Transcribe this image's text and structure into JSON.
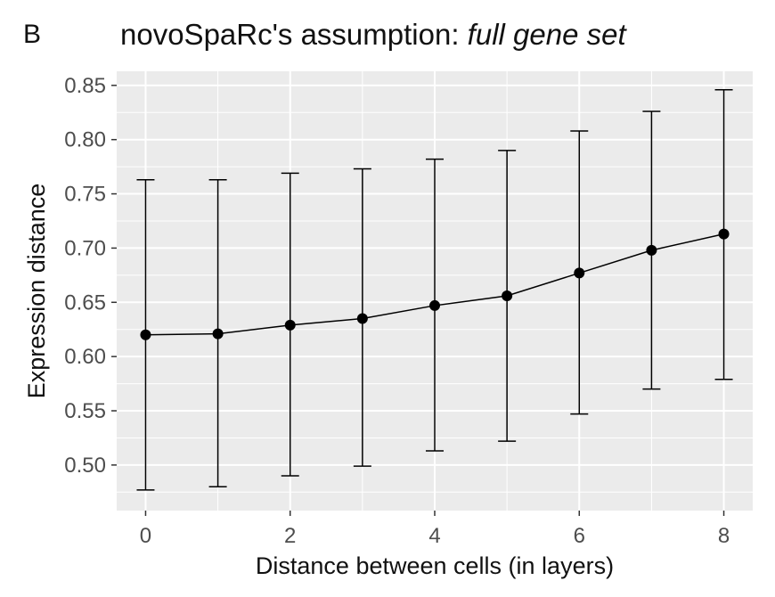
{
  "panel_label": "B",
  "title_plain": "novoSpaRc's assumption: ",
  "title_italic": "full gene set",
  "chart_data": {
    "type": "line",
    "title": "novoSpaRc's assumption: full gene set",
    "xlabel": "Distance between cells (in layers)",
    "ylabel": "Expression distance",
    "x": [
      0,
      1,
      2,
      3,
      4,
      5,
      6,
      7,
      8
    ],
    "series": [
      {
        "values": [
          0.62,
          0.621,
          0.629,
          0.635,
          0.647,
          0.656,
          0.677,
          0.698,
          0.713
        ],
        "error_low": [
          0.477,
          0.48,
          0.49,
          0.499,
          0.513,
          0.522,
          0.547,
          0.57,
          0.579
        ],
        "error_high": [
          0.763,
          0.763,
          0.769,
          0.773,
          0.782,
          0.79,
          0.808,
          0.826,
          0.846
        ]
      }
    ],
    "xlim": [
      -0.4,
      8.4
    ],
    "ylim": [
      0.458,
      0.863
    ],
    "x_ticks": [
      0,
      2,
      4,
      6,
      8
    ],
    "x_tick_labels": [
      "0",
      "2",
      "4",
      "6",
      "8"
    ],
    "y_ticks": [
      0.5,
      0.55,
      0.6,
      0.65,
      0.7,
      0.75,
      0.8,
      0.85
    ],
    "y_tick_labels": [
      "0.50",
      "0.55",
      "0.60",
      "0.65",
      "0.70",
      "0.75",
      "0.80",
      "0.85"
    ],
    "grid": true,
    "colors": {
      "panel_bg": "#ebebeb",
      "grid": "#ffffff",
      "series": "#000000",
      "tick_text": "#4d4d4d"
    }
  }
}
